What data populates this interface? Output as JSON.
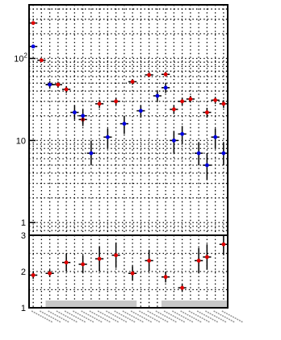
{
  "chart_data": [
    {
      "type": "scatter",
      "title": "",
      "xlabel": "",
      "ylabel": "",
      "yscale": "log",
      "ylim": [
        0.7,
        450
      ],
      "ytick_labels": [
        {
          "value": 1,
          "label": "1"
        },
        {
          "value": 10,
          "label": "10"
        },
        {
          "value": 100,
          "label": "10",
          "sup": "2"
        }
      ],
      "grid": true,
      "legend": "none",
      "n_categories": 24,
      "series": [
        {
          "marker_color": "#dd0000",
          "points": [
            {
              "i": 0,
              "y": 270,
              "lo": 270,
              "hi": 270
            },
            {
              "i": 1,
              "y": 95,
              "lo": 95,
              "hi": 95
            },
            {
              "i": 2,
              "y": 48,
              "lo": 48,
              "hi": 48
            },
            {
              "i": 3,
              "y": 48,
              "lo": 44,
              "hi": 52
            },
            {
              "i": 4,
              "y": 42,
              "lo": 38,
              "hi": 46
            },
            {
              "i": 6,
              "y": 18,
              "lo": 15,
              "hi": 21
            },
            {
              "i": 8,
              "y": 28,
              "lo": 25,
              "hi": 31
            },
            {
              "i": 10,
              "y": 30,
              "lo": 27,
              "hi": 33
            },
            {
              "i": 12,
              "y": 52,
              "lo": 48,
              "hi": 56
            },
            {
              "i": 14,
              "y": 63,
              "lo": 59,
              "hi": 67
            },
            {
              "i": 16,
              "y": 64,
              "lo": 60,
              "hi": 68
            },
            {
              "i": 17,
              "y": 24,
              "lo": 21,
              "hi": 27
            },
            {
              "i": 18,
              "y": 30,
              "lo": 27,
              "hi": 33
            },
            {
              "i": 19,
              "y": 32,
              "lo": 29,
              "hi": 35
            },
            {
              "i": 21,
              "y": 22,
              "lo": 19,
              "hi": 25
            },
            {
              "i": 22,
              "y": 31,
              "lo": 28,
              "hi": 34
            },
            {
              "i": 23,
              "y": 28,
              "lo": 25,
              "hi": 31
            }
          ]
        },
        {
          "marker_color": "#0000dd",
          "points": [
            {
              "i": 0,
              "y": 140,
              "lo": 140,
              "hi": 140
            },
            {
              "i": 2,
              "y": 48,
              "lo": 43,
              "hi": 53
            },
            {
              "i": 5,
              "y": 22,
              "lo": 18,
              "hi": 27
            },
            {
              "i": 6,
              "y": 20,
              "lo": 16,
              "hi": 24
            },
            {
              "i": 7,
              "y": 7,
              "lo": 5,
              "hi": 10
            },
            {
              "i": 9,
              "y": 11,
              "lo": 8,
              "hi": 14
            },
            {
              "i": 11,
              "y": 16,
              "lo": 12,
              "hi": 20
            },
            {
              "i": 13,
              "y": 23,
              "lo": 19,
              "hi": 27
            },
            {
              "i": 15,
              "y": 35,
              "lo": 30,
              "hi": 40
            },
            {
              "i": 16,
              "y": 44,
              "lo": 38,
              "hi": 50
            },
            {
              "i": 17,
              "y": 10,
              "lo": 7,
              "hi": 13
            },
            {
              "i": 18,
              "y": 12,
              "lo": 9,
              "hi": 15
            },
            {
              "i": 20,
              "y": 7,
              "lo": 5,
              "hi": 9.5
            },
            {
              "i": 21,
              "y": 5,
              "lo": 3.3,
              "hi": 7
            },
            {
              "i": 22,
              "y": 11,
              "lo": 8,
              "hi": 14
            },
            {
              "i": 23,
              "y": 7,
              "lo": 5,
              "hi": 9.5
            }
          ]
        }
      ]
    },
    {
      "type": "scatter",
      "title": "",
      "xlabel": "",
      "ylabel": "",
      "ylim": [
        1,
        3
      ],
      "ytick_labels": [
        {
          "value": 1,
          "label": "1"
        },
        {
          "value": 2,
          "label": "2"
        },
        {
          "value": 3,
          "label": "3"
        }
      ],
      "grid": true,
      "legend": "none",
      "band": {
        "y": [
          1.0,
          1.2
        ],
        "from_i": 2,
        "to_i": 23,
        "gap": [
          13,
          16
        ]
      },
      "series": [
        {
          "marker_color": "#dd0000",
          "points": [
            {
              "i": 0,
              "y": 1.9,
              "lo": 1.8,
              "hi": 2.0
            },
            {
              "i": 2,
              "y": 1.95,
              "lo": 1.85,
              "hi": 2.05
            },
            {
              "i": 4,
              "y": 2.25,
              "lo": 2.0,
              "hi": 2.5
            },
            {
              "i": 6,
              "y": 2.2,
              "lo": 1.95,
              "hi": 2.45
            },
            {
              "i": 8,
              "y": 2.35,
              "lo": 2.0,
              "hi": 2.7
            },
            {
              "i": 10,
              "y": 2.45,
              "lo": 2.1,
              "hi": 2.8
            },
            {
              "i": 12,
              "y": 1.95,
              "lo": 1.75,
              "hi": 2.15
            },
            {
              "i": 14,
              "y": 2.3,
              "lo": 2.0,
              "hi": 2.6
            },
            {
              "i": 16,
              "y": 1.85,
              "lo": 1.7,
              "hi": 2.0
            },
            {
              "i": 18,
              "y": 1.55,
              "lo": 1.45,
              "hi": 1.65
            },
            {
              "i": 20,
              "y": 2.3,
              "lo": 1.95,
              "hi": 2.65
            },
            {
              "i": 21,
              "y": 2.4,
              "lo": 2.05,
              "hi": 2.75
            },
            {
              "i": 23,
              "y": 2.75,
              "lo": 2.45,
              "hi": 3.0
            }
          ]
        }
      ]
    }
  ]
}
